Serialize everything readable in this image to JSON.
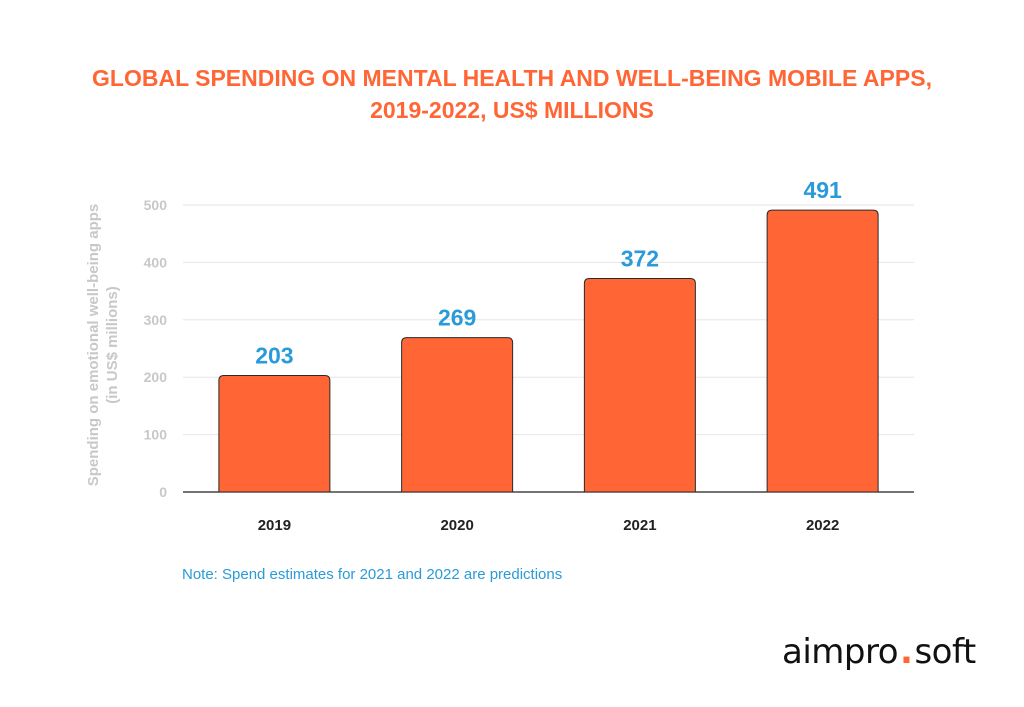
{
  "title_line1": "GLOBAL SPENDING ON MENTAL HEALTH AND WELL-BEING MOBILE APPS,",
  "title_line2": "2019-2022, US$ MILLIONS",
  "note": "Note: Spend estimates for 2021 and 2022 are predictions",
  "logo": {
    "part1": "aimpro",
    "dot": ".",
    "part2": "soft"
  },
  "colors": {
    "accent": "#ff6535",
    "bar": "#ff6535",
    "value_label": "#2a9bd8",
    "axis_text": "#c8c8c8",
    "grid": "#e6e6e6"
  },
  "chart_data": {
    "type": "bar",
    "title": "GLOBAL SPENDING ON MENTAL HEALTH AND WELL-BEING MOBILE APPS, 2019-2022, US$ MILLIONS",
    "categories": [
      "2019",
      "2020",
      "2021",
      "2022"
    ],
    "values": [
      203,
      269,
      372,
      491
    ],
    "ylabel_lines": [
      "Spending on emotional well-being apps",
      "(in US$ millions)"
    ],
    "yticks": [
      0,
      100,
      200,
      300,
      400,
      500
    ],
    "ylim": [
      0,
      500
    ],
    "grid": true
  }
}
